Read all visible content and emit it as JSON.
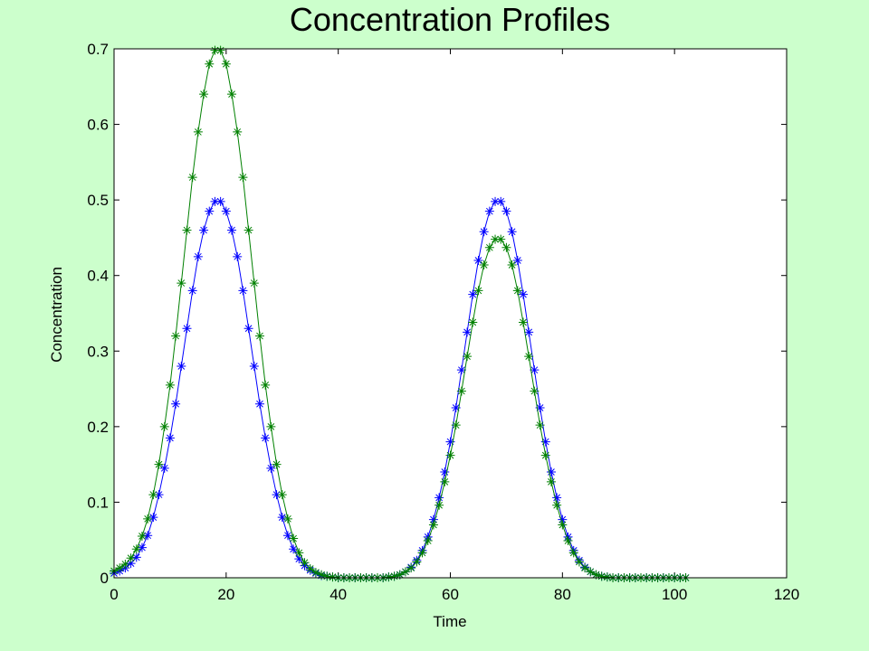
{
  "chart_data": {
    "type": "line",
    "title": "Concentration Profiles",
    "xlabel": "Time",
    "ylabel": "Concentration",
    "xlim": [
      0,
      120
    ],
    "ylim": [
      0,
      0.7
    ],
    "xticks": [
      0,
      20,
      40,
      60,
      80,
      100,
      120
    ],
    "xtick_labels": [
      "0",
      "20",
      "40",
      "60",
      "80",
      "100",
      "120"
    ],
    "yticks": [
      0,
      0.1,
      0.2,
      0.3,
      0.4,
      0.5,
      0.6,
      0.7
    ],
    "ytick_labels": [
      "0",
      "0.1",
      "0.2",
      "0.3",
      "0.4",
      "0.5",
      "0.6",
      "0.7"
    ],
    "grid": false,
    "legend": null,
    "marker": "asterisk",
    "background_color": "#ccffcc",
    "plot_background_color": "#ffffff",
    "series": [
      {
        "color": "#0000ff",
        "x": [
          0,
          1,
          2,
          3,
          4,
          5,
          6,
          7,
          8,
          9,
          10,
          11,
          12,
          13,
          14,
          15,
          16,
          17,
          18,
          19,
          20,
          21,
          22,
          23,
          24,
          25,
          26,
          27,
          28,
          29,
          30,
          31,
          32,
          33,
          34,
          35,
          36,
          37,
          38,
          39,
          40,
          41,
          42,
          43,
          44,
          45,
          46,
          47,
          48,
          49,
          50,
          51,
          52,
          53,
          54,
          55,
          56,
          57,
          58,
          59,
          60,
          61,
          62,
          63,
          64,
          65,
          66,
          67,
          68,
          69,
          70,
          71,
          72,
          73,
          74,
          75,
          76,
          77,
          78,
          79,
          80,
          81,
          82,
          83,
          84,
          85,
          86,
          87,
          88,
          89,
          90,
          91,
          92,
          93,
          94,
          95,
          96,
          97,
          98,
          99,
          100,
          101,
          102
        ],
        "y": [
          0.006,
          0.009,
          0.013,
          0.019,
          0.027,
          0.04,
          0.056,
          0.08,
          0.11,
          0.145,
          0.185,
          0.23,
          0.28,
          0.33,
          0.38,
          0.425,
          0.46,
          0.485,
          0.498,
          0.498,
          0.485,
          0.46,
          0.425,
          0.38,
          0.33,
          0.28,
          0.23,
          0.185,
          0.145,
          0.11,
          0.08,
          0.056,
          0.038,
          0.025,
          0.016,
          0.01,
          0.006,
          0.003,
          0.002,
          0.001,
          0,
          0,
          0,
          0,
          0,
          0,
          0,
          0,
          0,
          0.001,
          0.002,
          0.004,
          0.008,
          0.014,
          0.023,
          0.036,
          0.054,
          0.077,
          0.106,
          0.14,
          0.18,
          0.225,
          0.275,
          0.325,
          0.375,
          0.42,
          0.458,
          0.485,
          0.498,
          0.498,
          0.485,
          0.458,
          0.42,
          0.375,
          0.325,
          0.275,
          0.225,
          0.18,
          0.14,
          0.106,
          0.077,
          0.054,
          0.036,
          0.023,
          0.014,
          0.008,
          0.004,
          0.002,
          0.001,
          0,
          0,
          0,
          0,
          0,
          0,
          0,
          0,
          0,
          0,
          0,
          0,
          0,
          0
        ]
      },
      {
        "color": "#008000",
        "x": [
          0,
          1,
          2,
          3,
          4,
          5,
          6,
          7,
          8,
          9,
          10,
          11,
          12,
          13,
          14,
          15,
          16,
          17,
          18,
          19,
          20,
          21,
          22,
          23,
          24,
          25,
          26,
          27,
          28,
          29,
          30,
          31,
          32,
          33,
          34,
          35,
          36,
          37,
          38,
          39,
          40,
          41,
          42,
          43,
          44,
          45,
          46,
          47,
          48,
          49,
          50,
          51,
          52,
          53,
          54,
          55,
          56,
          57,
          58,
          59,
          60,
          61,
          62,
          63,
          64,
          65,
          66,
          67,
          68,
          69,
          70,
          71,
          72,
          73,
          74,
          75,
          76,
          77,
          78,
          79,
          80,
          81,
          82,
          83,
          84,
          85,
          86,
          87,
          88,
          89,
          90,
          91,
          92,
          93,
          94,
          95,
          96,
          97,
          98,
          99,
          100,
          101,
          102
        ],
        "y": [
          0.009,
          0.013,
          0.018,
          0.026,
          0.038,
          0.055,
          0.078,
          0.11,
          0.15,
          0.2,
          0.255,
          0.32,
          0.39,
          0.46,
          0.53,
          0.59,
          0.64,
          0.68,
          0.698,
          0.698,
          0.68,
          0.64,
          0.59,
          0.53,
          0.46,
          0.39,
          0.32,
          0.255,
          0.2,
          0.15,
          0.11,
          0.078,
          0.052,
          0.033,
          0.02,
          0.012,
          0.007,
          0.004,
          0.002,
          0.001,
          0,
          0,
          0,
          0,
          0,
          0,
          0,
          0,
          0,
          0.001,
          0.002,
          0.004,
          0.008,
          0.013,
          0.021,
          0.033,
          0.049,
          0.07,
          0.096,
          0.127,
          0.162,
          0.202,
          0.247,
          0.293,
          0.338,
          0.38,
          0.414,
          0.437,
          0.448,
          0.448,
          0.437,
          0.414,
          0.38,
          0.338,
          0.293,
          0.247,
          0.202,
          0.162,
          0.127,
          0.096,
          0.07,
          0.049,
          0.033,
          0.021,
          0.013,
          0.008,
          0.004,
          0.002,
          0.001,
          0,
          0,
          0,
          0,
          0,
          0,
          0,
          0,
          0,
          0,
          0,
          0,
          0,
          0
        ]
      }
    ]
  }
}
